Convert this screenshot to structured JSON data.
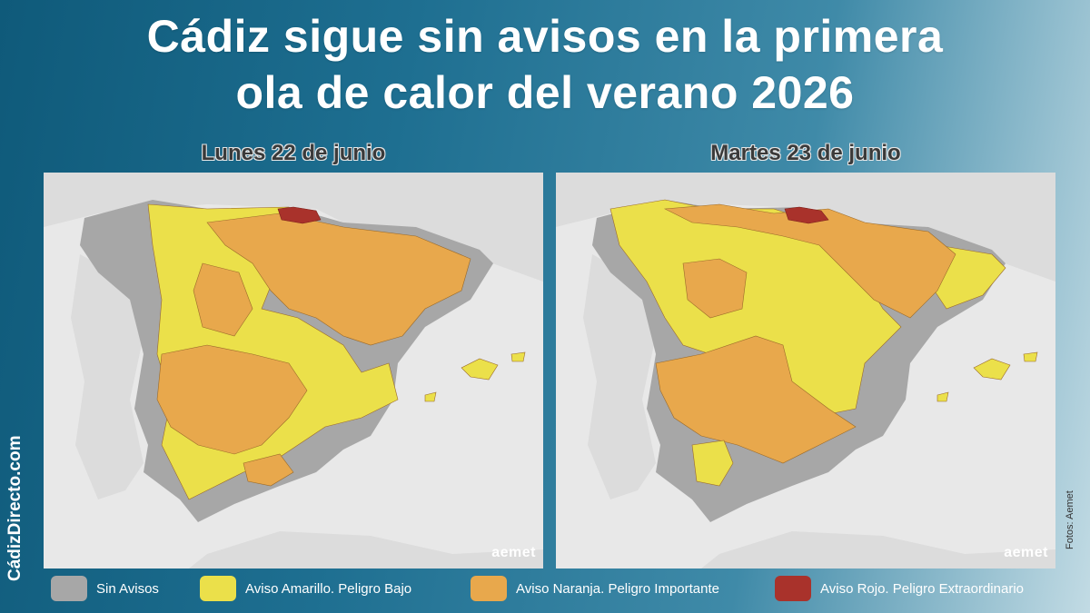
{
  "title": {
    "line1": "Cádiz sigue sin avisos en la primera",
    "line2": "ola de calor del verano 2026"
  },
  "maps": [
    {
      "date": "Lunes 22 de junio",
      "watermark": "aemet"
    },
    {
      "date": "Martes 23 de junio",
      "watermark": "aemet"
    }
  ],
  "legend": [
    {
      "label": "Sin Avisos",
      "color": "#a7a7a7"
    },
    {
      "label": "Aviso Amarillo. Peligro Bajo",
      "color": "#ebe04a"
    },
    {
      "label": "Aviso Naranja. Peligro Importante",
      "color": "#e8a84c"
    },
    {
      "label": "Aviso Rojo. Peligro Extraordinario",
      "color": "#a9322b"
    }
  ],
  "brand": "CádizDirecto.com",
  "credit": "Fotos: Aemet",
  "colors": {
    "background_start": "#0f5a7a",
    "background_end": "#c2dbe4",
    "sea": "#e8e8e8",
    "land_outside": "#dcdcdc",
    "border_line": "#9a6a2a"
  }
}
